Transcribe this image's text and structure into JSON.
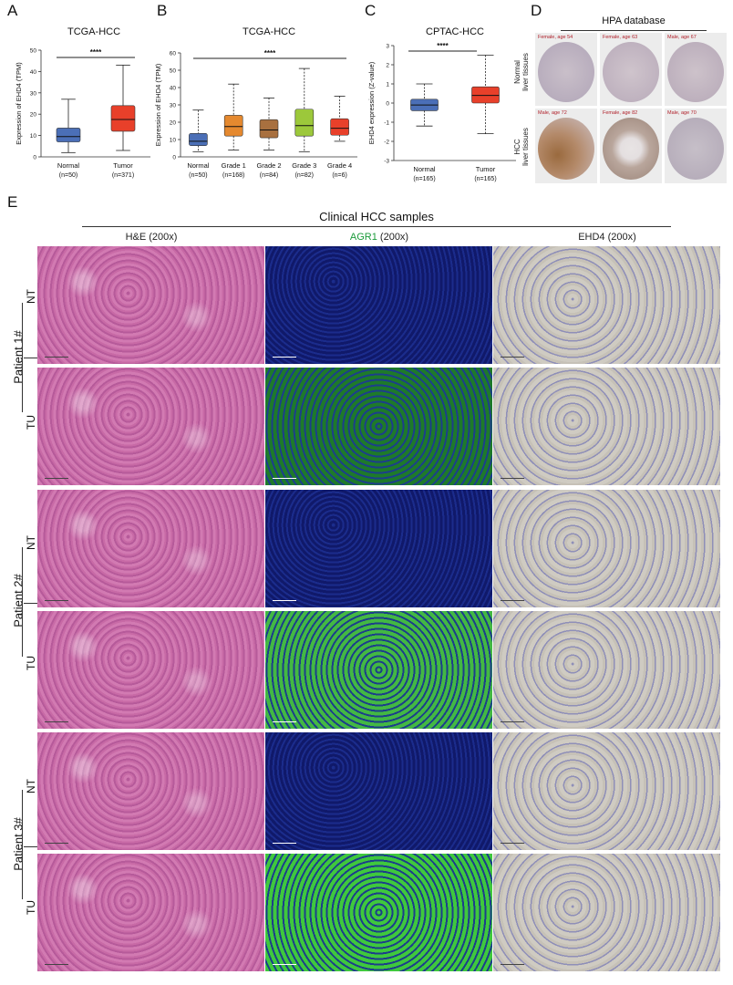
{
  "panels": {
    "A": {
      "letter": "A",
      "title": "TCGA-HCC",
      "ylabel": "Expression of EHD4 (TPM)",
      "significance": "****",
      "groups": [
        {
          "name": "Normal",
          "n": "(n=50)"
        },
        {
          "name": "Tumor",
          "n": "(n=371)"
        }
      ]
    },
    "B": {
      "letter": "B",
      "title": "TCGA-HCC",
      "ylabel": "Expression of EHD4 (TPM)",
      "significance": "****",
      "groups": [
        {
          "name": "Normal",
          "n": "(n=50)"
        },
        {
          "name": "Grade 1",
          "n": "(n=168)"
        },
        {
          "name": "Grade 2",
          "n": "(n=84)"
        },
        {
          "name": "Grade 3",
          "n": "(n=82)"
        },
        {
          "name": "Grade 4",
          "n": "(n=6)"
        }
      ]
    },
    "C": {
      "letter": "C",
      "title": "CPTAC-HCC",
      "ylabel": "EHD4 expression (Z-value)",
      "significance": "****",
      "groups": [
        {
          "name": "Normal",
          "n": "(n=165)"
        },
        {
          "name": "Tumor",
          "n": "(n=165)"
        }
      ]
    },
    "D": {
      "letter": "D",
      "title": "HPA database",
      "row_labels": [
        "Normal liver tissues",
        "HCC liver tissues"
      ],
      "row_labels_l1": [
        "Normal",
        "HCC"
      ],
      "row_labels_l2": [
        "liver tissues",
        "liver tissues"
      ],
      "captions": [
        [
          "Female, age 54",
          "Female, age 63",
          "Male, age 67"
        ],
        [
          "Male, age 72",
          "Female, age 82",
          "Male, age 70"
        ]
      ]
    },
    "E": {
      "letter": "E",
      "title": "Clinical HCC samples",
      "columns": {
        "he": "H&E (200x)",
        "agr1_name": "AGR1",
        "agr1_suffix": " (200x)",
        "ehd4": "EHD4 (200x)"
      },
      "patients": [
        "Patient 1#",
        "Patient 2#",
        "Patient 3#"
      ],
      "tissue_labels": {
        "nt": "NT",
        "tu": "TU"
      }
    }
  },
  "colors": {
    "normal_box": "#4b6fb7",
    "tumor_box": "#e8402a",
    "grade1_box": "#e5892f",
    "grade2_box": "#a8703f",
    "grade3_box": "#9cc83b",
    "grade4_box": "#e8402a",
    "agr1_label": "#1a9a3a",
    "he_tissue": "#c86aa6",
    "if_green": "#39b43a",
    "if_blue": "#1a2c8a",
    "ihc_bg": "#cfcbc2"
  },
  "chart_data": [
    {
      "type": "box",
      "panel": "A",
      "title": "TCGA-HCC",
      "ylabel": "Expression of EHD4 (TPM)",
      "ylim": [
        0,
        50
      ],
      "yticks": [
        0,
        10,
        20,
        30,
        40,
        50
      ],
      "categories": [
        "Normal",
        "Tumor"
      ],
      "boxes": [
        {
          "min": 2,
          "q1": 7,
          "median": 9.5,
          "q3": 13.5,
          "max": 27
        },
        {
          "min": 3,
          "q1": 12,
          "median": 17.5,
          "q3": 24,
          "max": 43
        }
      ]
    },
    {
      "type": "box",
      "panel": "B",
      "title": "TCGA-HCC",
      "ylabel": "Expression of EHD4 (TPM)",
      "ylim": [
        0,
        60
      ],
      "yticks": [
        0,
        10,
        20,
        30,
        40,
        50,
        60
      ],
      "categories": [
        "Normal",
        "Grade 1",
        "Grade 2",
        "Grade 3",
        "Grade 4"
      ],
      "boxes": [
        {
          "min": 3,
          "q1": 6.5,
          "median": 9,
          "q3": 13.5,
          "max": 27
        },
        {
          "min": 4,
          "q1": 12,
          "median": 17.5,
          "q3": 24,
          "max": 42
        },
        {
          "min": 4,
          "q1": 11,
          "median": 15.5,
          "q3": 21.5,
          "max": 34
        },
        {
          "min": 3,
          "q1": 12,
          "median": 18,
          "q3": 27.5,
          "max": 51
        },
        {
          "min": 9,
          "q1": 12.5,
          "median": 16.5,
          "q3": 22,
          "max": 35
        }
      ]
    },
    {
      "type": "box",
      "panel": "C",
      "title": "CPTAC-HCC",
      "ylabel": "EHD4 expression (Z-value)",
      "ylim": [
        -3,
        3
      ],
      "yticks": [
        -3,
        -2,
        -1,
        0,
        1,
        2,
        3
      ],
      "categories": [
        "Normal",
        "Tumor"
      ],
      "boxes": [
        {
          "min": -1.2,
          "q1": -0.4,
          "median": -0.1,
          "q3": 0.2,
          "max": 1.0
        },
        {
          "min": -1.6,
          "q1": 0.0,
          "median": 0.4,
          "q3": 0.85,
          "max": 2.5
        }
      ]
    }
  ]
}
